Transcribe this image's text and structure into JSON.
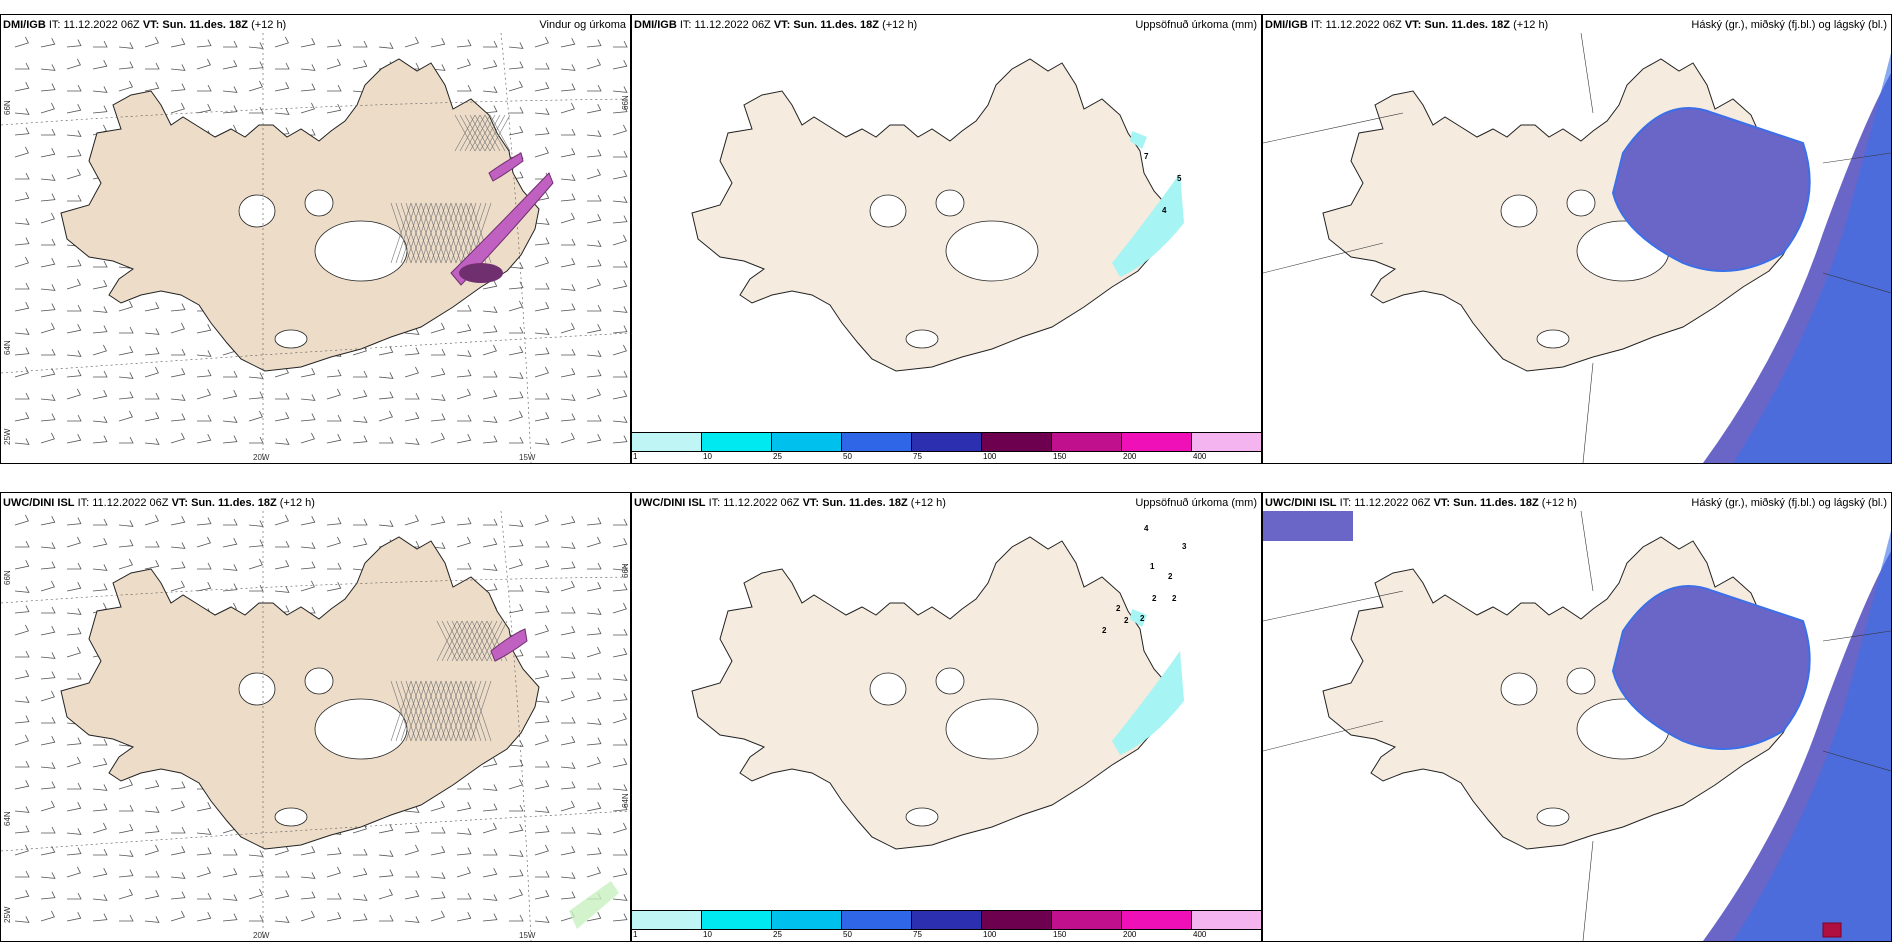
{
  "panels": [
    {
      "id": "p1",
      "model": "DMI/IGB",
      "it_label": "IT:",
      "it": "11.12.2022 06Z",
      "vt_label": "VT:",
      "vt": "Sun. 11.des. 18Z",
      "lead": "(+12 h)",
      "title": "Vindur og úrkoma",
      "type": "wind"
    },
    {
      "id": "p2",
      "model": "DMI/IGB",
      "it_label": "IT:",
      "it": "11.12.2022 06Z",
      "vt_label": "VT:",
      "vt": "Sun. 11.des. 18Z",
      "lead": "(+12 h)",
      "title": "Uppsöfnuð úrkoma (mm)",
      "type": "precip",
      "values": [
        "7",
        "5",
        "4"
      ]
    },
    {
      "id": "p3",
      "model": "DMI/IGB",
      "it_label": "IT:",
      "it": "11.12.2022 06Z",
      "vt_label": "VT:",
      "vt": "Sun. 11.des. 18Z",
      "lead": "(+12 h)",
      "title": "Háský (gr.), miðský (fj.bl.) og lágský (bl.)",
      "type": "cloud"
    },
    {
      "id": "p4",
      "model": "UWC/DINI ISL",
      "it_label": "IT:",
      "it": "11.12.2022 06Z",
      "vt_label": "VT:",
      "vt": "Sun. 11.des. 18Z",
      "lead": "(+12 h)",
      "title": "",
      "type": "wind"
    },
    {
      "id": "p5",
      "model": "UWC/DINI ISL",
      "it_label": "IT:",
      "it": "11.12.2022 06Z",
      "vt_label": "VT:",
      "vt": "Sun. 11.des. 18Z",
      "lead": "(+12 h)",
      "title": "Uppsöfnuð úrkoma (mm)",
      "type": "precip",
      "values": [
        "4",
        "3",
        "1",
        "2",
        "2",
        "2",
        "2",
        "2",
        "2",
        "2"
      ]
    },
    {
      "id": "p6",
      "model": "UWC/DINI ISL",
      "it_label": "IT:",
      "it": "11.12.2022 06Z",
      "vt_label": "VT:",
      "vt": "Sun. 11.des. 18Z",
      "lead": "(+12 h)",
      "title": "Háský (gr.), miðský (fj.bl.) og lágský (bl.)",
      "type": "cloud"
    }
  ],
  "axis_labels": {
    "lat66": "66N",
    "lat64": "64N",
    "lat25": "25W",
    "lon20": "20W",
    "lon15": "15W"
  },
  "colorbar": {
    "ticks": [
      "1",
      "10",
      "25",
      "50",
      "75",
      "100",
      "150",
      "200",
      "400"
    ],
    "colors": [
      "#bff5f5",
      "#00e8f0",
      "#00c0ee",
      "#2f66e8",
      "#2b2fb0",
      "#6e0050",
      "#c0108e",
      "#f010b8",
      "#f4b4f0"
    ]
  },
  "colors": {
    "land": "#f5ebde",
    "land_wind": "#ecdcc8",
    "coast": "#222222",
    "ocean": "#ffffff",
    "high_cloud": "#6a66c8",
    "mid_cloud": "#3b6fe8",
    "low_cloud": "#6fb6f0",
    "precip_pink": "#c060c0",
    "precip_dark": "#703070"
  }
}
